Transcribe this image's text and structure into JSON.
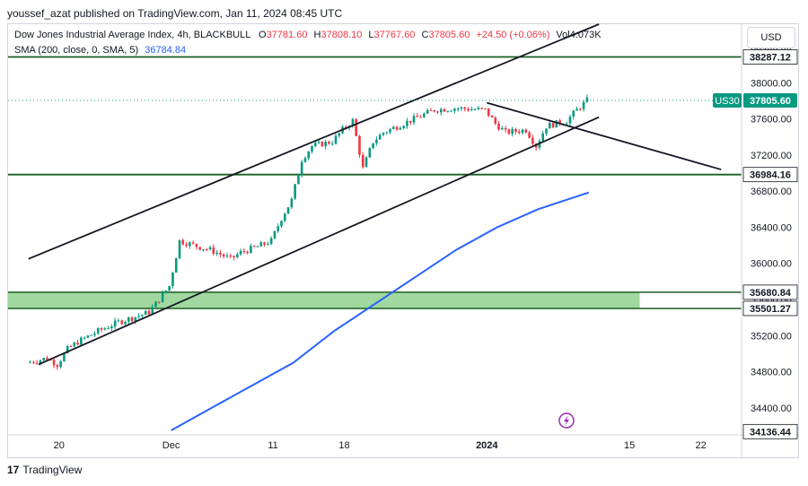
{
  "published": "youssef_azat published on TradingView.com, Jan 11, 2024 08:45 UTC",
  "legend": {
    "symbol": "Dow Jones Industrial Average Index, 4h, BLACKBULL",
    "o_label": "O",
    "o": "37781.60",
    "h_label": "H",
    "h": "37808.10",
    "l_label": "L",
    "l": "37767.60",
    "c_label": "C",
    "c": "37805.60",
    "change": "+24.50 (+0.06%)",
    "vol": "Vol4.073K",
    "sma_label": "SMA (200, close, 0, SMA, 5)",
    "sma_value": "36784.84"
  },
  "currency_button": "USD",
  "last_price_tag": {
    "symbol": "US30",
    "value": "37805.60"
  },
  "footer_brand": "TradingView",
  "colors": {
    "up": "#089981",
    "down": "#f23645",
    "sma": "#2962ff",
    "level": "#1b5e20",
    "zone": "#8fd18f",
    "trend": "#131722"
  },
  "chart_data": {
    "type": "candlestick",
    "title": "",
    "symbol": "US30",
    "ylim": [
      34100,
      38650
    ],
    "y_ticks": [
      34400,
      34800,
      35200,
      35600,
      36000,
      36400,
      36800,
      37200,
      37600,
      38000,
      38400
    ],
    "x_ticks": [
      "20",
      "Dec",
      "11",
      "18",
      "2024",
      "15",
      "22"
    ],
    "horizontal_levels": [
      38287.12,
      36984.16,
      34136.44
    ],
    "zone": {
      "from": 35501.27,
      "to": 35680.84
    },
    "level_labels": [
      "38287.12",
      "36984.16",
      "35680.84",
      "35501.27",
      "34136.44"
    ],
    "price_path": [
      [
        "Nov 17",
        34900
      ],
      [
        "Nov 19",
        34950
      ],
      [
        "Nov 20",
        34880
      ],
      [
        "Nov 21",
        35050
      ],
      [
        "Nov 22",
        35130
      ],
      [
        "Nov 24",
        35250
      ],
      [
        "Nov 26",
        35350
      ],
      [
        "Nov 28",
        35420
      ],
      [
        "Nov 29",
        35460
      ],
      [
        "Nov 30",
        35600
      ],
      [
        "Dec 1",
        35750
      ],
      [
        "Dec 2",
        36250
      ],
      [
        "Dec 4",
        36180
      ],
      [
        "Dec 5",
        36150
      ],
      [
        "Dec 7",
        36050
      ],
      [
        "Dec 8",
        36120
      ],
      [
        "Dec 10",
        36200
      ],
      [
        "Dec 11",
        36250
      ],
      [
        "Dec 12",
        36500
      ],
      [
        "Dec 13",
        36700
      ],
      [
        "Dec 14",
        37150
      ],
      [
        "Dec 15",
        37300
      ],
      [
        "Dec 17",
        37350
      ],
      [
        "Dec 18",
        37480
      ],
      [
        "Dec 19",
        37580
      ],
      [
        "Dec 20",
        37050
      ],
      [
        "Dec 21",
        37350
      ],
      [
        "Dec 22",
        37450
      ],
      [
        "Dec 25",
        37600
      ],
      [
        "Dec 27",
        37700
      ],
      [
        "Dec 29",
        37720
      ],
      [
        "Jan 1",
        37700
      ],
      [
        "Jan 2",
        37550
      ],
      [
        "Jan 3",
        37450
      ],
      [
        "Jan 5",
        37480
      ],
      [
        "Jan 6",
        37300
      ],
      [
        "Jan 7",
        37520
      ],
      [
        "Jan 9",
        37580
      ],
      [
        "Jan 10",
        37700
      ],
      [
        "Jan 11",
        37805.6
      ]
    ],
    "sma": [
      [
        "Dec 1",
        34150
      ],
      [
        "Dec 5",
        34400
      ],
      [
        "Dec 9",
        34650
      ],
      [
        "Dec 13",
        34900
      ],
      [
        "Dec 17",
        35250
      ],
      [
        "Dec 21",
        35550
      ],
      [
        "Dec 25",
        35850
      ],
      [
        "Dec 29",
        36150
      ],
      [
        "Jan 2",
        36400
      ],
      [
        "Jan 6",
        36600
      ],
      [
        "Jan 11",
        36784.84
      ]
    ],
    "trendlines": [
      {
        "from": [
          "Nov 17",
          36050
        ],
        "to": [
          "Jan 12",
          38650
        ]
      },
      {
        "from": [
          "Nov 18",
          34880
        ],
        "to": [
          "Jan 12",
          37620
        ]
      },
      {
        "from": [
          "Jan 1",
          37780
        ],
        "to": [
          "Jan 24",
          37040
        ]
      }
    ]
  }
}
